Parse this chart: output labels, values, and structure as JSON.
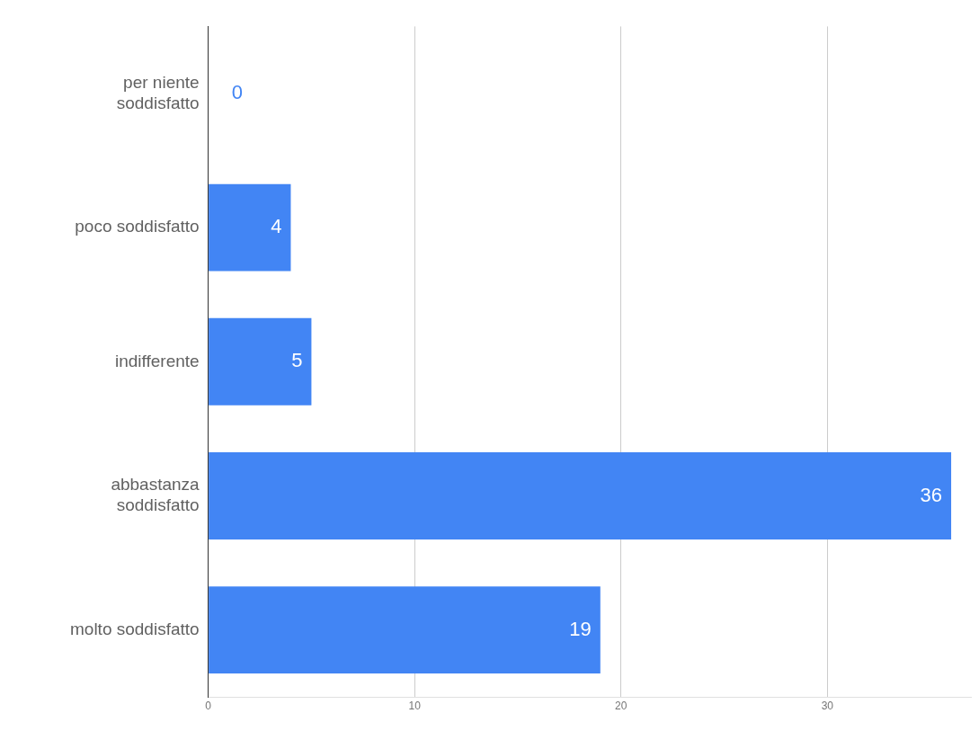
{
  "chart_data": {
    "type": "bar",
    "orientation": "horizontal",
    "categories": [
      "per niente\nsoddisfatto",
      "poco soddisfatto",
      "indifferente",
      "abbastanza\nsoddisfatto",
      "molto soddisfatto"
    ],
    "values": [
      0,
      4,
      5,
      36,
      19
    ],
    "color": "#4285f4",
    "xlim": [
      0,
      37
    ],
    "xticks": [
      0,
      10,
      20,
      30
    ],
    "grid": "x",
    "data_labels": true,
    "legend": false
  }
}
